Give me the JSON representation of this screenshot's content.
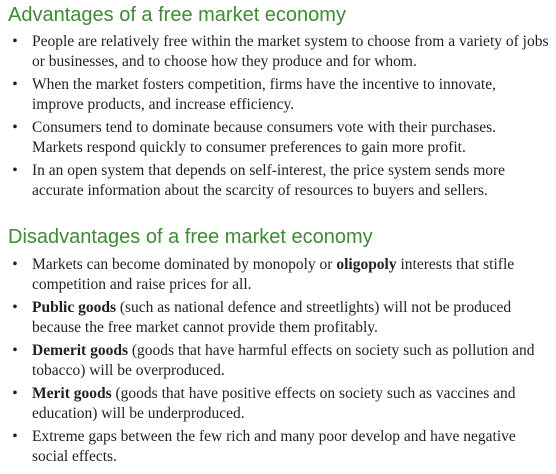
{
  "advantages": {
    "heading": "Advantages of a free market economy",
    "items": [
      {
        "lines": [
          "People are relatively free within the market system to choose from a variety of jobs",
          "or businesses, and to choose how they produce and for whom."
        ]
      },
      {
        "lines": [
          "When the market fosters competition, firms have the incentive to innovate,",
          "improve products, and increase efficiency."
        ]
      },
      {
        "lines": [
          "Consumers tend to dominate because consumers vote with their purchases.",
          "Markets respond quickly to consumer preferences to gain more profit."
        ]
      },
      {
        "lines": [
          "In an open system that depends on self-interest, the price system sends more",
          "accurate information about the scarcity of resources to buyers and sellers."
        ]
      }
    ]
  },
  "disadvantages": {
    "heading": "Disadvantages of a free market economy",
    "items": [
      {
        "pre": "Markets can become dominated by monopoly or ",
        "bold": "oligopoly",
        "post": " interests that stifle",
        "line2": "competition and raise prices for all."
      },
      {
        "pre": "",
        "bold": "Public goods",
        "post": " (such as national defence and streetlights) will not be produced",
        "line2": "because the free market cannot provide them profitably."
      },
      {
        "pre": "",
        "bold": "Demerit goods",
        "post": " (goods that have harmful effects on society such as pollution and",
        "line2": "tobacco) will be overproduced."
      },
      {
        "pre": "",
        "bold": "Merit goods",
        "post": " (goods that have positive effects on society such as vaccines and",
        "line2": "education) will be underproduced."
      },
      {
        "pre": "Extreme gaps between the few rich and many poor develop and have negative",
        "bold": "",
        "post": "",
        "line2": "social effects."
      }
    ]
  },
  "bullet_glyph": "•"
}
